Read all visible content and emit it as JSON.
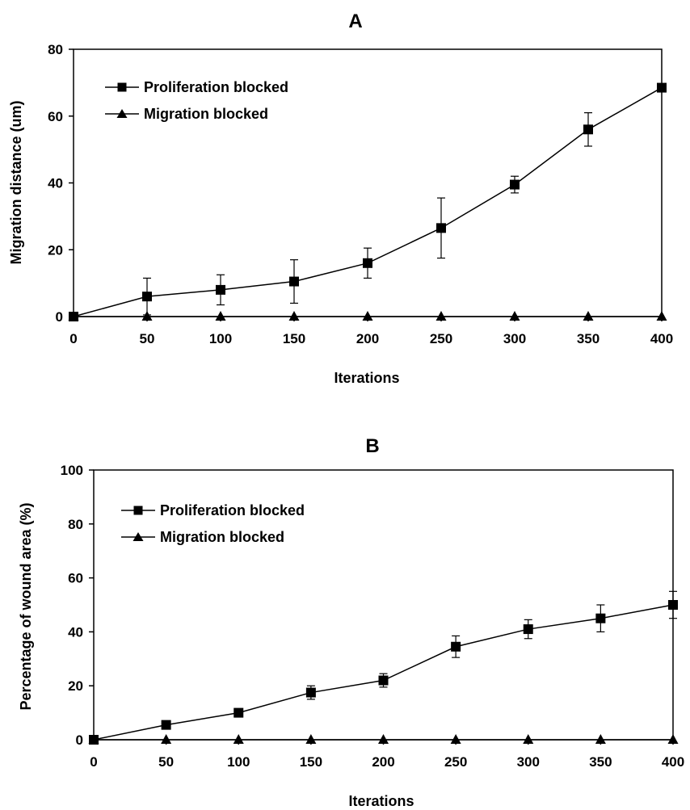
{
  "chart_data": [
    {
      "type": "line",
      "title": "A",
      "xlabel": "Iterations",
      "ylabel": "Migration distance (um)",
      "x": [
        0,
        50,
        100,
        150,
        200,
        250,
        300,
        350,
        400
      ],
      "xticks": [
        "0",
        "50",
        "100",
        "150",
        "200",
        "250",
        "300",
        "350",
        "400"
      ],
      "yticks": [
        "0",
        "20",
        "40",
        "60",
        "80"
      ],
      "xlim": [
        0,
        400
      ],
      "ylim": [
        0,
        80
      ],
      "grid": false,
      "legend_position": "top-left",
      "series": [
        {
          "name": "Proliferation blocked",
          "marker": "square",
          "values": [
            0,
            6,
            8,
            10.5,
            16,
            26.5,
            39.5,
            56,
            68.5
          ],
          "error": [
            0,
            5.5,
            4.5,
            6.5,
            4.5,
            9,
            2.5,
            5,
            0.5
          ]
        },
        {
          "name": "Migration blocked",
          "marker": "triangle",
          "values": [
            0,
            0,
            0,
            0,
            0,
            0,
            0,
            0,
            0
          ],
          "error": [
            0,
            0,
            0,
            0,
            0,
            0,
            0,
            0,
            0
          ]
        }
      ]
    },
    {
      "type": "line",
      "title": "B",
      "xlabel": "Iterations",
      "ylabel": "Percentage of wound area (%)",
      "x": [
        0,
        50,
        100,
        150,
        200,
        250,
        300,
        350,
        400
      ],
      "xticks": [
        "0",
        "50",
        "100",
        "150",
        "200",
        "250",
        "300",
        "350",
        "400"
      ],
      "yticks": [
        "0",
        "20",
        "40",
        "60",
        "80",
        "100"
      ],
      "xlim": [
        0,
        400
      ],
      "ylim": [
        0,
        100
      ],
      "grid": false,
      "legend_position": "top-left",
      "series": [
        {
          "name": "Proliferation blocked",
          "marker": "square",
          "values": [
            0,
            5.5,
            10,
            17.5,
            22,
            34.5,
            41,
            45,
            50
          ],
          "error": [
            0,
            0.5,
            0.5,
            2.5,
            2.5,
            4,
            3.5,
            5,
            5
          ]
        },
        {
          "name": "Migration blocked",
          "marker": "triangle",
          "values": [
            0,
            0,
            0,
            0,
            0,
            0,
            0,
            0,
            0
          ],
          "error": [
            0,
            0,
            0,
            0,
            0,
            0,
            0,
            0,
            0
          ]
        }
      ]
    }
  ]
}
